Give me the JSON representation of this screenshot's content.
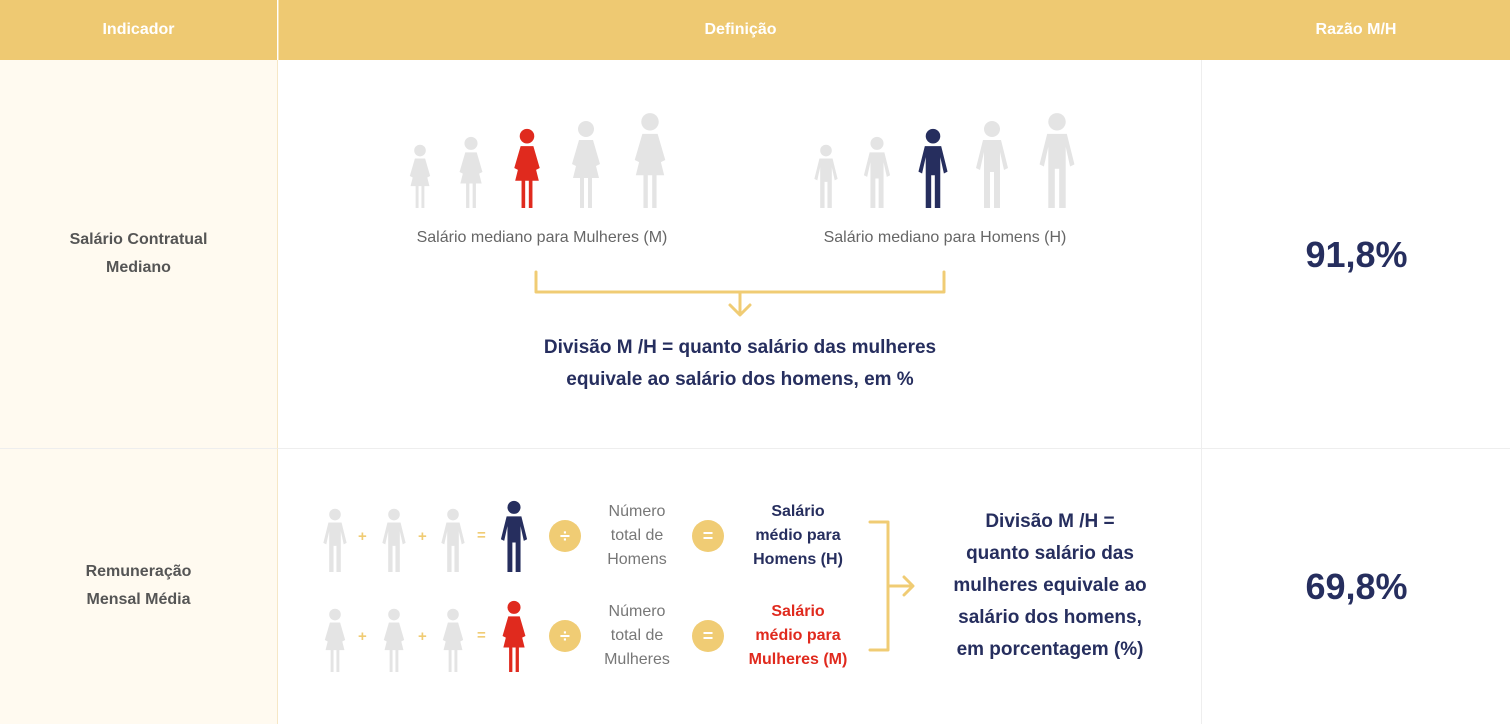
{
  "header": {
    "col_indicator": "Indicador",
    "col_definition": "Definição",
    "col_ratio": "Razão M/H"
  },
  "rows": [
    {
      "indicator_line1": "Salário Contratual",
      "indicator_line2": "Mediano",
      "women_caption": "Salário mediano para Mulheres (M)",
      "men_caption": "Salário mediano para Homens (H)",
      "division_line1": "Divisão M /H = quanto salário das mulheres",
      "division_line2": "equivale ao salário dos homens, em %",
      "ratio": "91,8%"
    },
    {
      "indicator_line1": "Remuneração",
      "indicator_line2": "Mensal Média",
      "plus": "+",
      "equals": "=",
      "divide": "÷",
      "men_total_1": "Número",
      "men_total_2": "total de",
      "men_total_3": "Homens",
      "women_total_1": "Número",
      "women_total_2": "total de",
      "women_total_3": "Mulheres",
      "men_avg_1": "Salário",
      "men_avg_2": "médio para",
      "men_avg_3": "Homens (H)",
      "women_avg_1": "Salário",
      "women_avg_2": "médio para",
      "women_avg_3": "Mulheres (M)",
      "division_1": "Divisão M /H =",
      "division_2": "quanto salário das",
      "division_3": "mulheres equivale ao",
      "division_4": "salário dos homens,",
      "division_5": "em porcentagem (%)",
      "ratio": "69,8%"
    }
  ],
  "colors": {
    "header_bg": "#eec972",
    "navy": "#262e5e",
    "red": "#e02a1e",
    "grey_person": "#e4e4e4",
    "accent": "#f0cc74"
  },
  "icons": [
    "woman-icon",
    "man-icon",
    "plus-icon",
    "equals-icon",
    "divide-icon",
    "bracket-arrow-icon"
  ]
}
